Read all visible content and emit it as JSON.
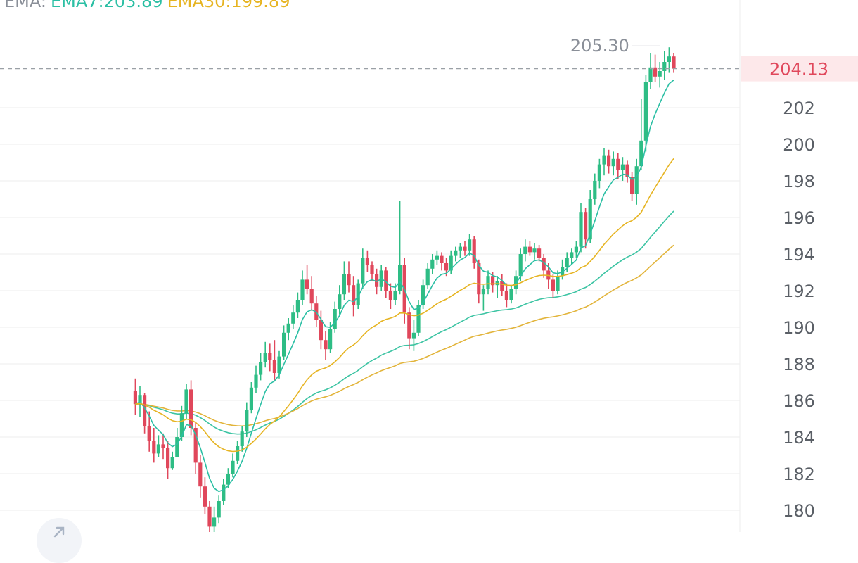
{
  "legend": {
    "ema_label": "EMA:",
    "ema7_label": "EMA7:203.89",
    "ema30_label": "EMA30:199.89"
  },
  "price_axis": {
    "ticks": [
      "202",
      "200",
      "198",
      "196",
      "194",
      "192",
      "190",
      "188",
      "186",
      "184",
      "182",
      "180"
    ],
    "current_price": "204.13",
    "high_label": "205.30"
  },
  "colors": {
    "up": "#2ebd85",
    "down": "#e0475b",
    "ema7": "#2bbfa4",
    "ema30": "#e6b422",
    "ema_long_teal": "#3cc4a3",
    "ema_long_gold": "#e2b43a",
    "grid": "#eeeeee",
    "current_price_text": "#e0475b",
    "current_price_bg": "#fde8ea"
  },
  "icons": {
    "scroll_button": "arrow-up-right-icon"
  },
  "chart_data": {
    "type": "candlestick",
    "y_axis": {
      "min": 179,
      "max": 207,
      "ticks": [
        180,
        182,
        184,
        186,
        188,
        190,
        192,
        194,
        196,
        198,
        200,
        202
      ]
    },
    "current_price": 204.13,
    "visible_high": 205.3,
    "candles": [
      [
        186.5,
        187.2,
        185.2,
        185.8
      ],
      [
        185.8,
        186.8,
        185.1,
        186.3
      ],
      [
        186.3,
        186.4,
        184.2,
        184.6
      ],
      [
        184.6,
        185.4,
        183.2,
        183.8
      ],
      [
        183.8,
        184.5,
        182.6,
        183.1
      ],
      [
        183.1,
        184.1,
        182.9,
        183.6
      ],
      [
        183.6,
        184.2,
        182.8,
        183.4
      ],
      [
        183.4,
        183.8,
        181.7,
        182.3
      ],
      [
        182.3,
        183.2,
        182.2,
        182.9
      ],
      [
        182.9,
        184.5,
        182.9,
        184.0
      ],
      [
        184.0,
        185.7,
        183.8,
        185.3
      ],
      [
        185.3,
        186.9,
        185.0,
        186.6
      ],
      [
        186.6,
        187.1,
        184.1,
        184.5
      ],
      [
        184.5,
        184.8,
        182.0,
        182.6
      ],
      [
        182.6,
        183.0,
        180.7,
        181.3
      ],
      [
        181.3,
        181.8,
        179.8,
        180.2
      ],
      [
        180.2,
        180.5,
        178.7,
        179.1
      ],
      [
        179.1,
        180.2,
        178.6,
        179.6
      ],
      [
        179.6,
        180.8,
        179.3,
        180.5
      ],
      [
        180.5,
        181.7,
        180.3,
        181.4
      ],
      [
        181.4,
        182.3,
        181.2,
        182.0
      ],
      [
        182.0,
        183.1,
        181.8,
        182.7
      ],
      [
        182.7,
        183.8,
        182.5,
        183.5
      ],
      [
        183.5,
        184.6,
        183.2,
        184.3
      ],
      [
        184.3,
        185.9,
        184.0,
        185.5
      ],
      [
        185.5,
        187.0,
        185.3,
        186.7
      ],
      [
        186.7,
        187.9,
        186.4,
        187.4
      ],
      [
        187.4,
        188.6,
        187.1,
        188.1
      ],
      [
        188.1,
        189.2,
        187.8,
        188.6
      ],
      [
        188.6,
        189.1,
        187.6,
        188.2
      ],
      [
        188.2,
        189.3,
        187.1,
        187.5
      ],
      [
        187.5,
        188.7,
        187.2,
        188.4
      ],
      [
        188.4,
        190.1,
        188.2,
        189.7
      ],
      [
        189.7,
        190.5,
        189.3,
        190.2
      ],
      [
        190.2,
        191.2,
        189.9,
        190.8
      ],
      [
        190.8,
        191.9,
        190.5,
        191.5
      ],
      [
        191.5,
        193.1,
        191.2,
        192.6
      ],
      [
        192.6,
        193.4,
        191.8,
        192.1
      ],
      [
        192.1,
        192.8,
        190.9,
        191.3
      ],
      [
        191.3,
        191.7,
        190.0,
        190.4
      ],
      [
        190.4,
        190.9,
        188.8,
        189.3
      ],
      [
        189.3,
        189.8,
        188.2,
        188.8
      ],
      [
        188.8,
        190.3,
        188.6,
        189.9
      ],
      [
        189.9,
        191.4,
        189.7,
        191.0
      ],
      [
        191.0,
        192.3,
        190.7,
        191.8
      ],
      [
        191.8,
        193.6,
        191.5,
        192.9
      ],
      [
        192.9,
        193.6,
        191.9,
        192.3
      ],
      [
        192.3,
        192.8,
        190.6,
        191.2
      ],
      [
        191.2,
        192.6,
        191.0,
        192.4
      ],
      [
        192.4,
        194.3,
        192.1,
        193.8
      ],
      [
        193.8,
        194.2,
        193.0,
        193.4
      ],
      [
        193.4,
        193.6,
        192.5,
        192.9
      ],
      [
        192.9,
        193.2,
        191.8,
        192.2
      ],
      [
        192.2,
        193.4,
        192.0,
        193.1
      ],
      [
        193.1,
        193.3,
        191.6,
        192.0
      ],
      [
        192.0,
        192.4,
        191.0,
        191.5
      ],
      [
        191.5,
        192.4,
        191.2,
        192.0
      ],
      [
        192.0,
        196.9,
        191.8,
        193.4
      ],
      [
        193.4,
        193.8,
        190.2,
        190.8
      ],
      [
        190.8,
        191.1,
        188.8,
        189.4
      ],
      [
        189.4,
        190.4,
        188.7,
        189.7
      ],
      [
        189.7,
        191.5,
        189.5,
        191.2
      ],
      [
        191.2,
        192.6,
        191.0,
        192.3
      ],
      [
        192.3,
        193.5,
        192.1,
        193.2
      ],
      [
        193.2,
        194.0,
        192.9,
        193.7
      ],
      [
        193.7,
        194.2,
        193.4,
        193.9
      ],
      [
        193.9,
        194.1,
        193.1,
        193.5
      ],
      [
        193.5,
        193.8,
        192.8,
        193.1
      ],
      [
        193.1,
        194.2,
        192.9,
        193.9
      ],
      [
        193.9,
        194.4,
        193.6,
        194.2
      ],
      [
        194.2,
        194.6,
        193.8,
        194.4
      ],
      [
        194.4,
        194.7,
        193.9,
        194.2
      ],
      [
        194.2,
        195.1,
        193.9,
        194.8
      ],
      [
        194.8,
        195.0,
        193.2,
        193.5
      ],
      [
        193.5,
        193.7,
        191.3,
        191.8
      ],
      [
        191.8,
        192.3,
        190.9,
        192.1
      ],
      [
        192.1,
        193.1,
        191.8,
        192.8
      ],
      [
        192.8,
        193.0,
        191.9,
        192.3
      ],
      [
        192.3,
        192.8,
        191.6,
        192.5
      ],
      [
        192.5,
        192.9,
        191.7,
        192.0
      ],
      [
        192.0,
        192.4,
        191.1,
        191.5
      ],
      [
        191.5,
        192.3,
        191.3,
        192.1
      ],
      [
        192.1,
        193.1,
        191.8,
        192.8
      ],
      [
        192.8,
        194.3,
        192.5,
        194.0
      ],
      [
        194.0,
        194.8,
        193.6,
        194.4
      ],
      [
        194.4,
        194.7,
        193.9,
        194.1
      ],
      [
        194.1,
        194.6,
        193.7,
        194.3
      ],
      [
        194.3,
        194.5,
        193.6,
        193.8
      ],
      [
        193.8,
        194.0,
        192.7,
        193.1
      ],
      [
        193.1,
        193.5,
        192.1,
        192.6
      ],
      [
        192.6,
        192.9,
        191.6,
        192.0
      ],
      [
        192.0,
        193.1,
        191.8,
        192.8
      ],
      [
        192.8,
        193.7,
        192.6,
        193.3
      ],
      [
        193.3,
        194.1,
        193.0,
        193.8
      ],
      [
        193.8,
        194.3,
        193.4,
        194.1
      ],
      [
        194.1,
        194.7,
        193.8,
        194.4
      ],
      [
        194.4,
        196.8,
        194.1,
        196.3
      ],
      [
        196.3,
        196.5,
        194.3,
        194.8
      ],
      [
        194.8,
        197.5,
        194.6,
        197.0
      ],
      [
        197.0,
        198.4,
        196.7,
        198.0
      ],
      [
        198.0,
        199.2,
        197.6,
        198.9
      ],
      [
        198.9,
        199.8,
        198.3,
        199.4
      ],
      [
        199.4,
        199.7,
        198.4,
        198.8
      ],
      [
        198.8,
        199.6,
        198.3,
        199.2
      ],
      [
        199.2,
        199.5,
        198.1,
        198.6
      ],
      [
        198.6,
        199.3,
        198.0,
        198.9
      ],
      [
        198.9,
        199.1,
        197.9,
        198.2
      ],
      [
        198.2,
        198.5,
        196.9,
        197.3
      ],
      [
        197.3,
        199.2,
        196.7,
        198.8
      ],
      [
        198.8,
        202.5,
        198.6,
        200.2
      ],
      [
        200.2,
        203.8,
        199.6,
        203.4
      ],
      [
        203.4,
        205.0,
        203.0,
        204.2
      ],
      [
        204.2,
        204.9,
        203.4,
        203.7
      ],
      [
        203.7,
        204.5,
        203.1,
        204.0
      ],
      [
        204.0,
        205.1,
        203.5,
        204.5
      ],
      [
        204.5,
        205.3,
        203.9,
        204.8
      ],
      [
        204.8,
        205.0,
        203.9,
        204.13
      ]
    ],
    "ema7_end": 203.89,
    "ema30_end": 199.89
  }
}
